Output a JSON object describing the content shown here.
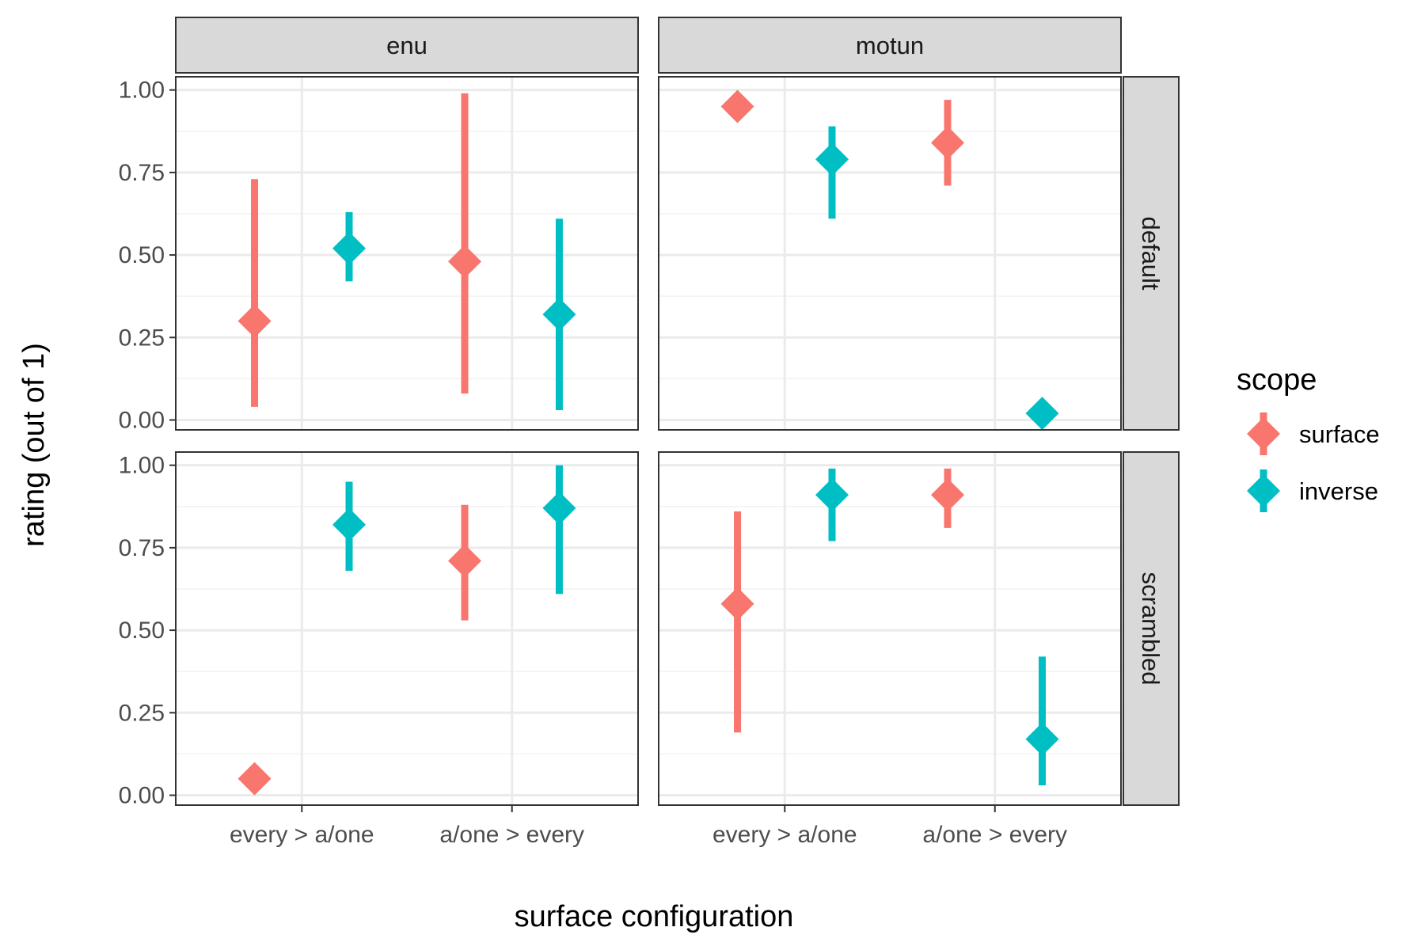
{
  "chart_data": {
    "type": "scatter",
    "mark": "pointrange",
    "xlabel": "surface configuration",
    "ylabel": "rating (out of 1)",
    "categories": [
      "every > a/one",
      "a/one > every"
    ],
    "ylim": [
      -0.03,
      1.04
    ],
    "yticks": [
      "0.00",
      "0.25",
      "0.50",
      "0.75",
      "1.00"
    ],
    "ytick_values": [
      0,
      0.25,
      0.5,
      0.75,
      1
    ],
    "grid": true,
    "columns": [
      "enu",
      "motun"
    ],
    "rows": [
      "default",
      "scrambled"
    ],
    "legend": {
      "title": "scope",
      "placement": "right",
      "entries": [
        {
          "name": "surface",
          "color": "#F8766D"
        },
        {
          "name": "inverse",
          "color": "#00BFC4"
        }
      ]
    },
    "panels": [
      {
        "column": "enu",
        "row": "default",
        "points": [
          {
            "category": "every > a/one",
            "scope": "surface",
            "y": 0.3,
            "ymin": 0.04,
            "ymax": 0.73
          },
          {
            "category": "every > a/one",
            "scope": "inverse",
            "y": 0.52,
            "ymin": 0.42,
            "ymax": 0.63
          },
          {
            "category": "a/one > every",
            "scope": "surface",
            "y": 0.48,
            "ymin": 0.08,
            "ymax": 0.99
          },
          {
            "category": "a/one > every",
            "scope": "inverse",
            "y": 0.32,
            "ymin": 0.03,
            "ymax": 0.61
          }
        ]
      },
      {
        "column": "motun",
        "row": "default",
        "points": [
          {
            "category": "every > a/one",
            "scope": "surface",
            "y": 0.95,
            "ymin": 0.95,
            "ymax": 0.95
          },
          {
            "category": "every > a/one",
            "scope": "inverse",
            "y": 0.79,
            "ymin": 0.61,
            "ymax": 0.89
          },
          {
            "category": "a/one > every",
            "scope": "surface",
            "y": 0.84,
            "ymin": 0.71,
            "ymax": 0.97
          },
          {
            "category": "a/one > every",
            "scope": "inverse",
            "y": 0.02,
            "ymin": 0.02,
            "ymax": 0.02
          }
        ]
      },
      {
        "column": "enu",
        "row": "scrambled",
        "points": [
          {
            "category": "every > a/one",
            "scope": "surface",
            "y": 0.05,
            "ymin": 0.05,
            "ymax": 0.05
          },
          {
            "category": "every > a/one",
            "scope": "inverse",
            "y": 0.82,
            "ymin": 0.68,
            "ymax": 0.95
          },
          {
            "category": "a/one > every",
            "scope": "surface",
            "y": 0.71,
            "ymin": 0.53,
            "ymax": 0.88
          },
          {
            "category": "a/one > every",
            "scope": "inverse",
            "y": 0.87,
            "ymin": 0.61,
            "ymax": 1.0
          }
        ]
      },
      {
        "column": "motun",
        "row": "scrambled",
        "points": [
          {
            "category": "every > a/one",
            "scope": "surface",
            "y": 0.58,
            "ymin": 0.19,
            "ymax": 0.86
          },
          {
            "category": "every > a/one",
            "scope": "inverse",
            "y": 0.91,
            "ymin": 0.77,
            "ymax": 0.99
          },
          {
            "category": "a/one > every",
            "scope": "surface",
            "y": 0.91,
            "ymin": 0.81,
            "ymax": 0.99
          },
          {
            "category": "a/one > every",
            "scope": "inverse",
            "y": 0.17,
            "ymin": 0.03,
            "ymax": 0.42
          }
        ]
      }
    ]
  }
}
